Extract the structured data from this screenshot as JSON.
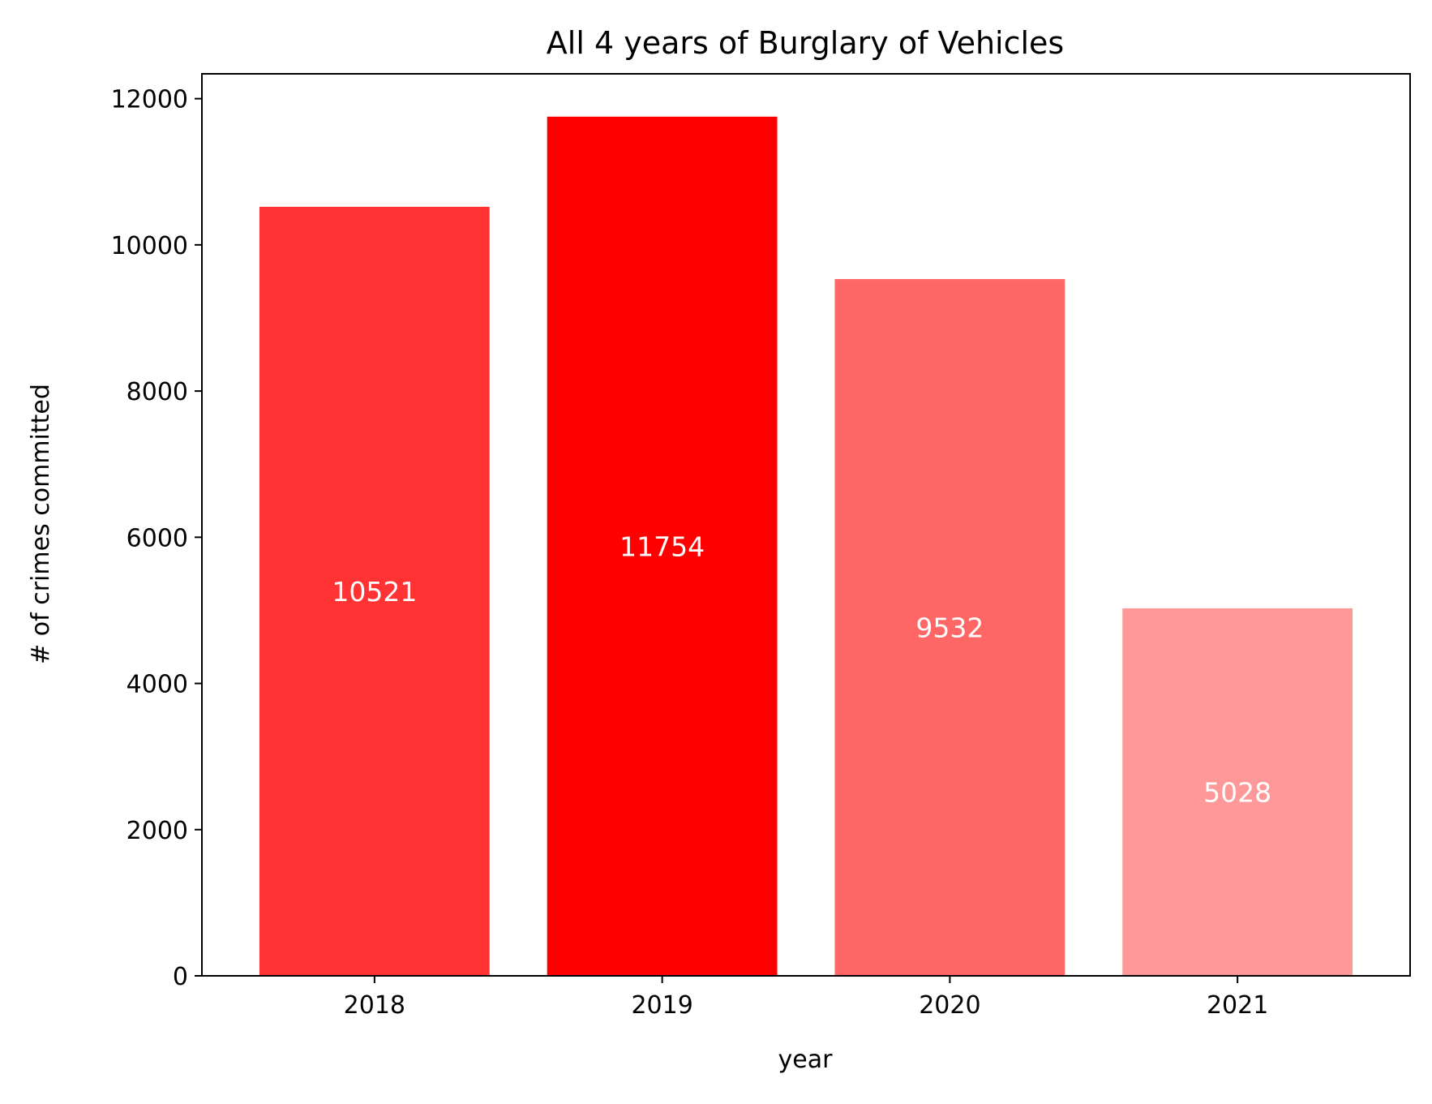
{
  "chart_data": {
    "type": "bar",
    "title": "All 4 years of Burglary of Vehicles",
    "xlabel": "year",
    "ylabel": "# of crimes committed",
    "categories": [
      "2018",
      "2019",
      "2020",
      "2021"
    ],
    "values": [
      10521,
      11754,
      9532,
      5028
    ],
    "data_labels": [
      "10521",
      "11754",
      "9532",
      "5028"
    ],
    "bar_colors": [
      "#ff3333",
      "#ff0000",
      "#ff6666",
      "#ff9999"
    ],
    "label_color": "#ffffff",
    "ylim": [
      0,
      12340
    ],
    "yticks": [
      0,
      2000,
      4000,
      6000,
      8000,
      10000,
      12000
    ],
    "ytick_labels": [
      "0",
      "2000",
      "4000",
      "6000",
      "8000",
      "10000",
      "12000"
    ],
    "grid": false,
    "legend": "none"
  }
}
